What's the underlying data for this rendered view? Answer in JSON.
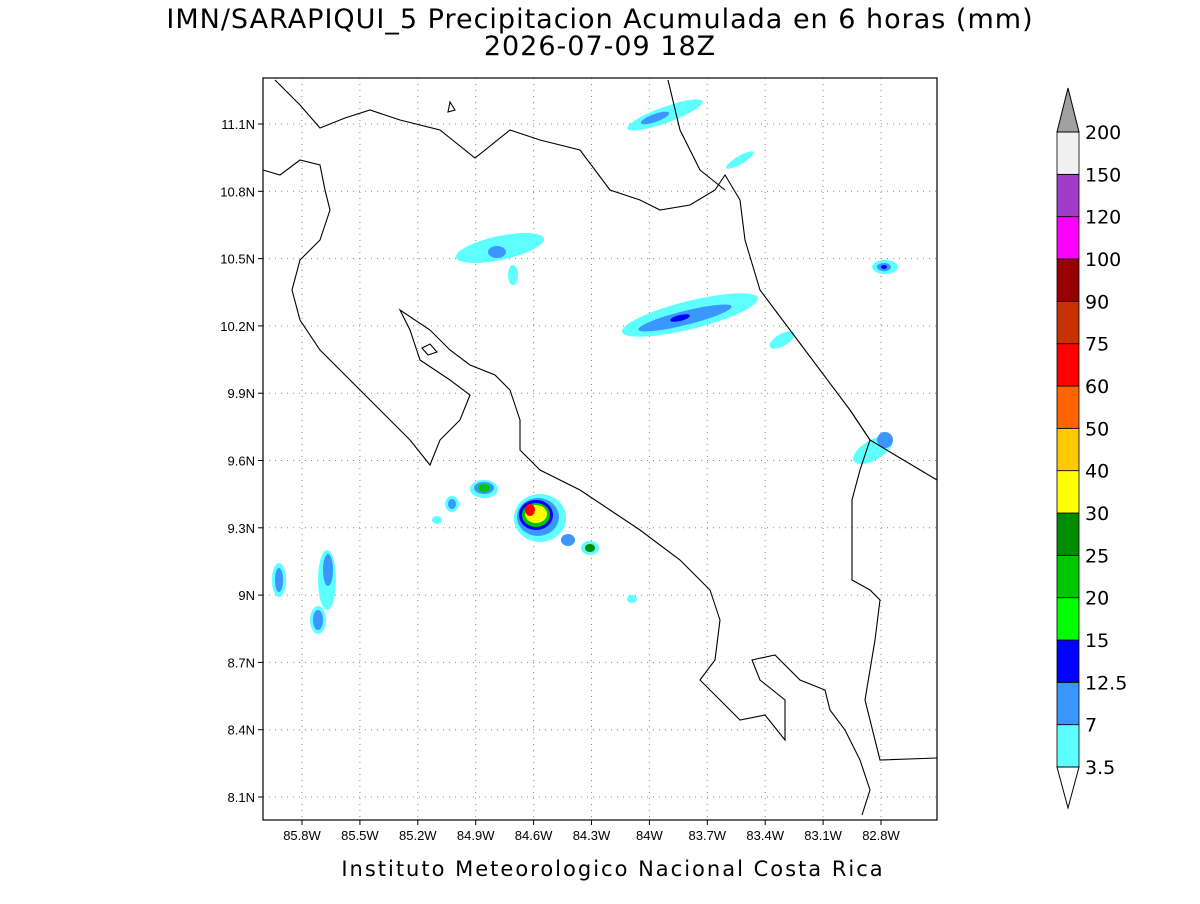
{
  "header": {
    "title": "IMN/SARAPIQUI_5 Precipitacion Acumulada en 6 horas (mm)",
    "subtitle": "2026-07-09 18Z"
  },
  "map": {
    "lat_labels": [
      "11.1N",
      "10.8N",
      "10.5N",
      "10.2N",
      "9.9N",
      "9.6N",
      "9.3N",
      "9N",
      "8.7N",
      "8.4N",
      "8.1N"
    ],
    "lon_labels": [
      "85.8W",
      "85.5W",
      "85.2W",
      "84.9W",
      "84.6W",
      "84.3W",
      "84W",
      "83.7W",
      "83.4W",
      "83.1W",
      "82.8W"
    ]
  },
  "colorbar": {
    "labels": [
      "3.5",
      "7",
      "12.5",
      "15",
      "20",
      "25",
      "30",
      "40",
      "50",
      "60",
      "75",
      "90",
      "100",
      "120",
      "150",
      "200"
    ],
    "colors": [
      "#5effff",
      "#3c96ff",
      "#0000ff",
      "#00ff00",
      "#00c800",
      "#008c00",
      "#ffff00",
      "#ffc800",
      "#ff6400",
      "#ff0000",
      "#c83200",
      "#960000",
      "#ff00ff",
      "#a03cc8",
      "#f0f0f0"
    ],
    "over_color": "#a0a0a0",
    "under_color": "#ffffff"
  },
  "footer": "Instituto Meteorologico Nacional Costa Rica"
}
